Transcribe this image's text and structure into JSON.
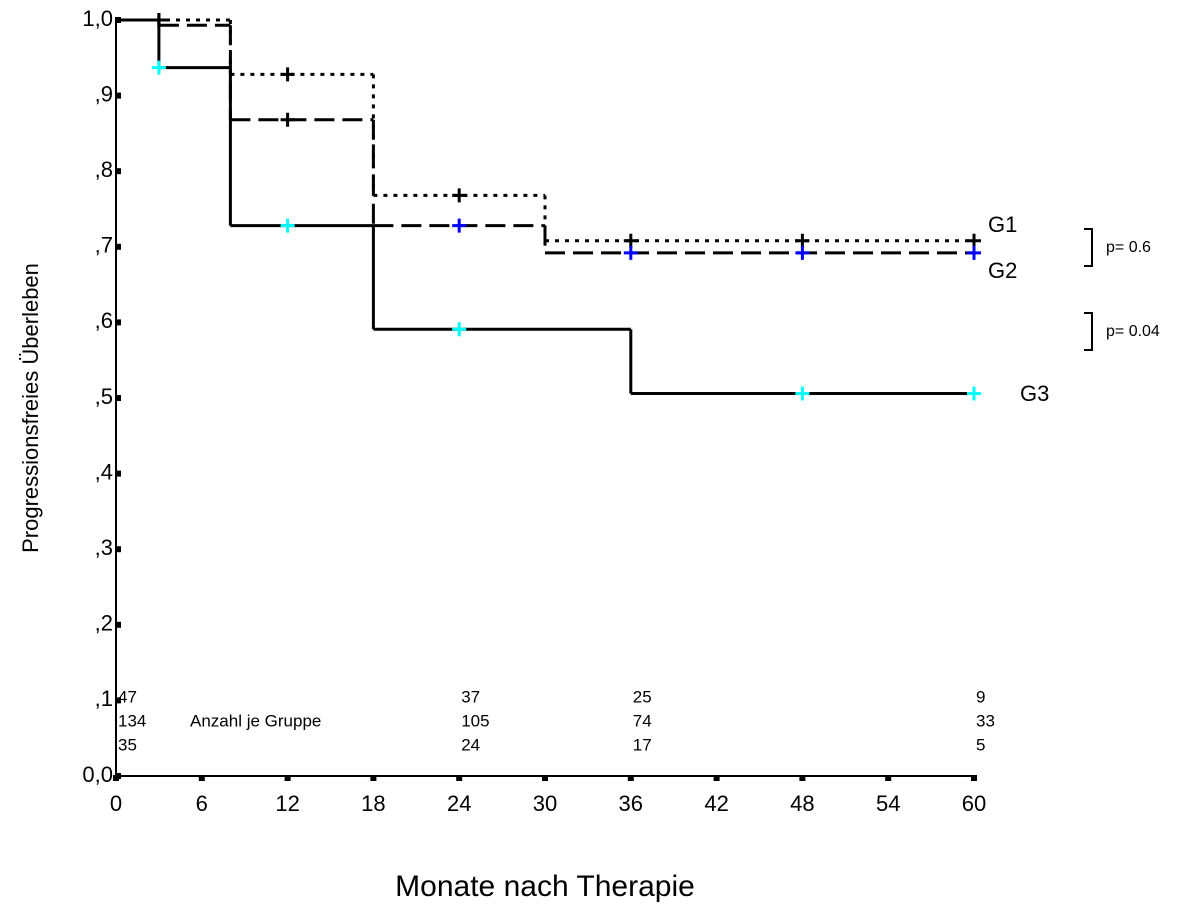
{
  "chart_data": {
    "type": "step",
    "x_label": "Monate nach Therapie",
    "y_label": "Progressionsfreies Überleben",
    "xlim": [
      0,
      60
    ],
    "ylim": [
      0,
      1
    ],
    "xticks": [
      0,
      6,
      12,
      18,
      24,
      30,
      36,
      42,
      48,
      54,
      60
    ],
    "yticks": [
      {
        "value": 0,
        "label": "0,0"
      },
      {
        "value": 0.1,
        "label": ",1"
      },
      {
        "value": 0.2,
        "label": ",2"
      },
      {
        "value": 0.3,
        "label": ",3"
      },
      {
        "value": 0.4,
        "label": ",4"
      },
      {
        "value": 0.5,
        "label": ",5"
      },
      {
        "value": 0.6,
        "label": ",6"
      },
      {
        "value": 0.7,
        "label": ",7"
      },
      {
        "value": 0.8,
        "label": ",8"
      },
      {
        "value": 0.9,
        "label": ",9"
      },
      {
        "value": 1,
        "label": "1,0"
      }
    ],
    "series": [
      {
        "name": "G1",
        "color": "#000000",
        "dash": "dotted",
        "x": [
          0,
          8,
          18,
          30
        ],
        "values": [
          1.0,
          0.928,
          0.768,
          0.708
        ],
        "censored": {
          "x": [
            3,
            12,
            24,
            36,
            48,
            60
          ],
          "values": [
            1.0,
            0.928,
            0.768,
            0.708,
            0.708,
            0.708
          ],
          "colors": [
            "#000000",
            "#000000",
            "#000000",
            "#000000",
            "#000000",
            "#000000"
          ]
        }
      },
      {
        "name": "G2",
        "color": "#000000",
        "dash": "dashed",
        "x": [
          0,
          3,
          8,
          18,
          30
        ],
        "values": [
          1.0,
          0.993,
          0.868,
          0.728,
          0.692
        ],
        "censored": {
          "x": [
            3,
            12,
            24,
            36,
            48,
            60
          ],
          "values": [
            1.0,
            0.868,
            0.728,
            0.692,
            0.692,
            0.692
          ],
          "colors": [
            "#000000",
            "#000000",
            "#0000ff",
            "#0000ff",
            "#0000ff",
            "#0000ff"
          ]
        }
      },
      {
        "name": "G3",
        "color": "#000000",
        "dash": "solid",
        "x": [
          0,
          3,
          8,
          18,
          36
        ],
        "values": [
          1.0,
          0.937,
          0.728,
          0.591,
          0.506
        ],
        "censored": {
          "x": [
            3,
            12,
            24,
            48,
            60
          ],
          "values": [
            0.937,
            0.728,
            0.591,
            0.506,
            0.506
          ],
          "colors": [
            "#00ffff",
            "#00ffff",
            "#00ffff",
            "#00ffff",
            "#00ffff"
          ]
        }
      }
    ],
    "p_values": [
      "p= 0.6",
      "p= 0.04"
    ],
    "risk_table": {
      "label": "Anzahl je Gruppe",
      "x": [
        0,
        24,
        36,
        60
      ],
      "rows": [
        [
          47,
          37,
          25,
          9
        ],
        [
          134,
          105,
          74,
          33
        ],
        [
          35,
          24,
          17,
          5
        ]
      ]
    }
  }
}
